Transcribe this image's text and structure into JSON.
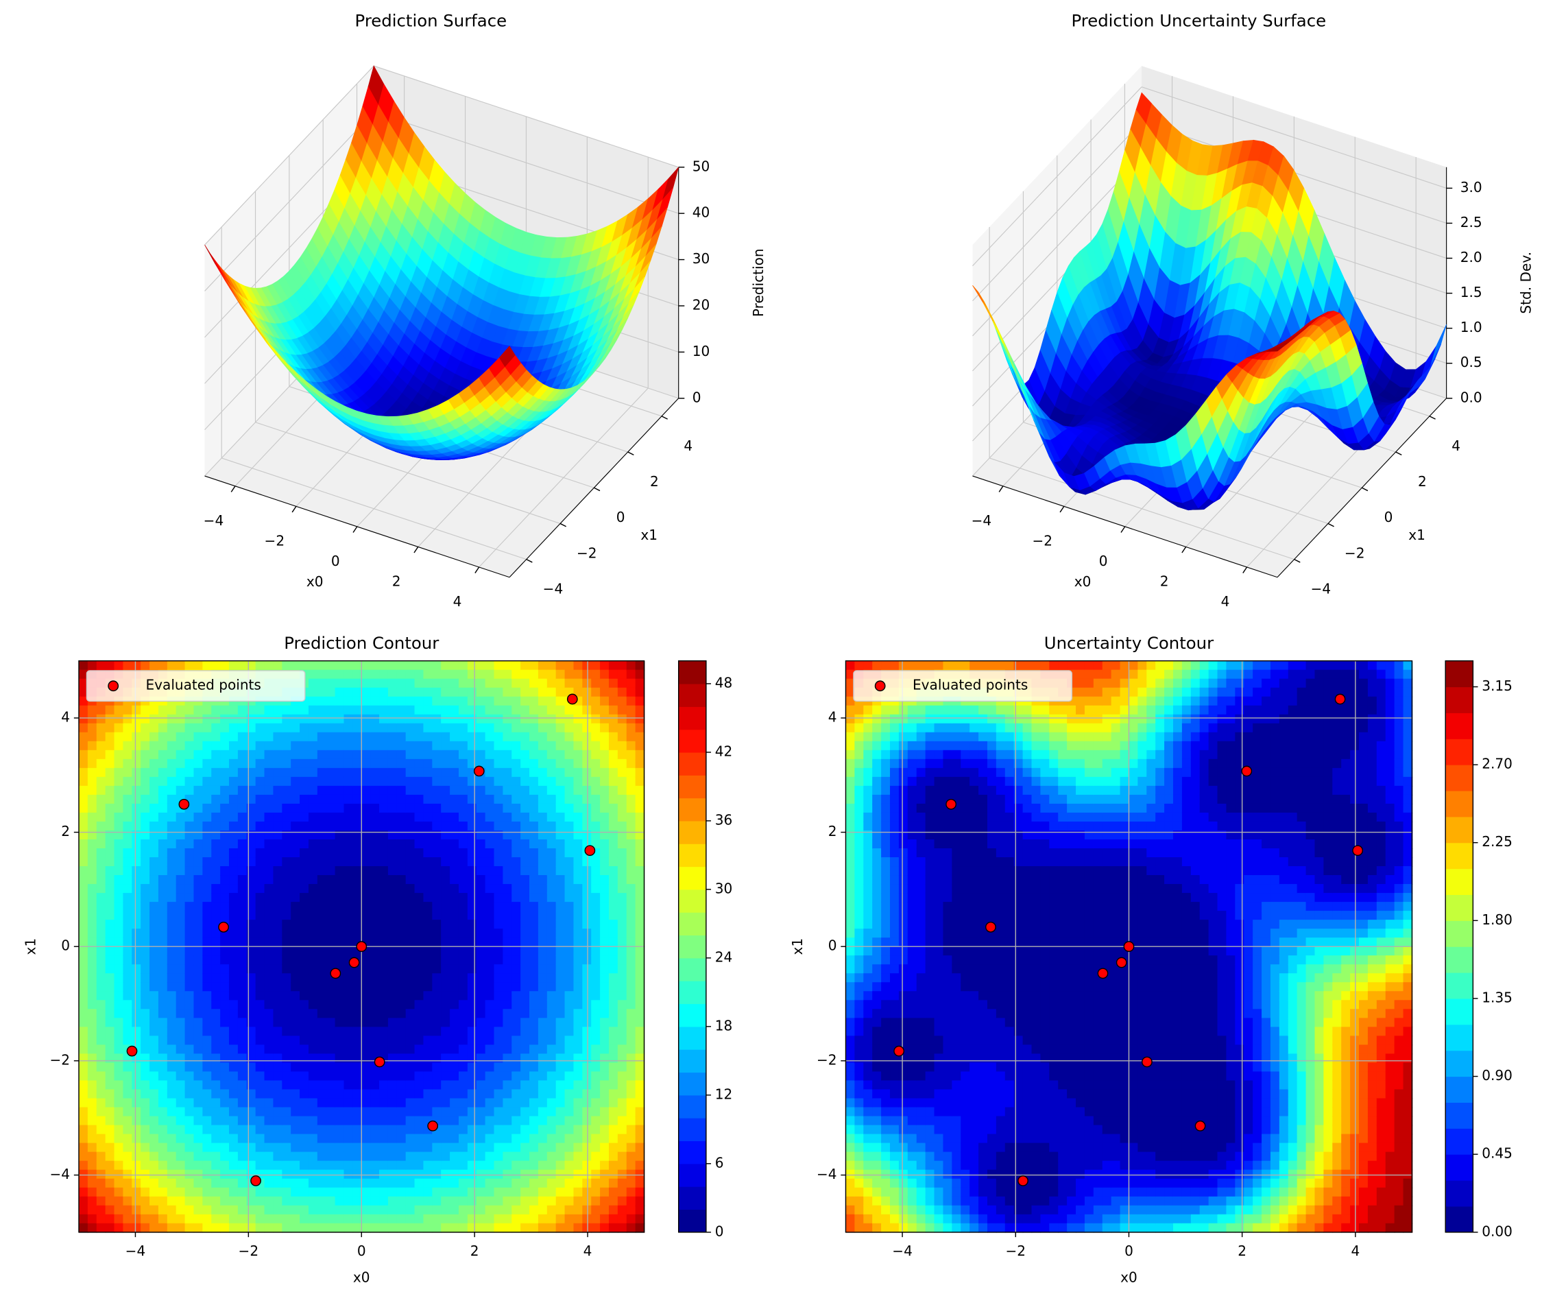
{
  "chart_data": [
    {
      "type": "surface3d",
      "title": "Prediction Surface",
      "xlabel": "x0",
      "ylabel": "x1",
      "zlabel": "Prediction",
      "xlim": [
        -5,
        5
      ],
      "ylim": [
        -5,
        5
      ],
      "zlim": [
        0,
        50
      ],
      "xticks": [
        {
          "value": -4,
          "label": "−4"
        },
        {
          "value": -2,
          "label": "−2"
        },
        0,
        2,
        4
      ],
      "yticks": [
        {
          "value": -4,
          "label": "−4"
        },
        {
          "value": -2,
          "label": "−2"
        },
        0,
        2,
        4
      ],
      "zticks": [
        0,
        10,
        20,
        30,
        40,
        50
      ]
    },
    {
      "type": "surface3d",
      "title": "Prediction Uncertainty Surface",
      "xlabel": "x0",
      "ylabel": "x1",
      "zlabel": "Std. Dev.",
      "xlim": [
        -5,
        5
      ],
      "ylim": [
        -5,
        5
      ],
      "zlim": [
        0,
        3.3
      ],
      "xticks": [
        {
          "value": -4,
          "label": "−4"
        },
        {
          "value": -2,
          "label": "−2"
        },
        0,
        2,
        4
      ],
      "yticks": [
        {
          "value": -4,
          "label": "−4"
        },
        {
          "value": -2,
          "label": "−2"
        },
        0,
        2,
        4
      ],
      "zticks": [
        {
          "value": 0,
          "label": "0.0"
        },
        {
          "value": 0.5,
          "label": "0.5"
        },
        {
          "value": 1,
          "label": "1.0"
        },
        {
          "value": 1.5,
          "label": "1.5"
        },
        {
          "value": 2,
          "label": "2.0"
        },
        {
          "value": 2.5,
          "label": "2.5"
        },
        {
          "value": 3,
          "label": "3.0"
        }
      ]
    },
    {
      "type": "contour",
      "title": "Prediction Contour",
      "xlabel": "x0",
      "ylabel": "x1",
      "xlim": [
        -5,
        5
      ],
      "ylim": [
        -5,
        5
      ],
      "grid": true,
      "legend": "upper left",
      "xticks": [
        {
          "value": -4,
          "label": "−4"
        },
        {
          "value": -2,
          "label": "−2"
        },
        0,
        2,
        4
      ],
      "yticks": [
        {
          "value": -4,
          "label": "−4"
        },
        {
          "value": -2,
          "label": "−2"
        },
        0,
        2,
        4
      ],
      "levels": [
        0,
        2,
        4,
        6,
        8,
        10,
        12,
        14,
        16,
        18,
        20,
        22,
        24,
        26,
        28,
        30,
        32,
        34,
        36,
        38,
        40,
        42,
        44,
        46,
        48,
        50
      ],
      "colorbar_ticks": [
        0,
        6,
        12,
        18,
        24,
        30,
        36,
        42,
        48
      ],
      "series": [
        {
          "name": "Evaluated points",
          "color": "#ff0000",
          "x": [
            3.73,
            2.08,
            -3.14,
            4.04,
            -2.44,
            0,
            -0.13,
            -0.46,
            0.32,
            -4.06,
            1.26,
            -1.87
          ],
          "values": [
            4.33,
            3.07,
            2.49,
            1.68,
            0.34,
            0,
            -0.28,
            -0.47,
            -2.02,
            -1.83,
            -3.14,
            -4.1
          ]
        }
      ]
    },
    {
      "type": "contour",
      "title": "Uncertainty Contour",
      "xlabel": "x0",
      "ylabel": "x1",
      "xlim": [
        -5,
        5
      ],
      "ylim": [
        -5,
        5
      ],
      "grid": true,
      "legend": "upper left",
      "xticks": [
        {
          "value": -4,
          "label": "−4"
        },
        {
          "value": -2,
          "label": "−2"
        },
        0,
        2,
        4
      ],
      "yticks": [
        {
          "value": -4,
          "label": "−4"
        },
        {
          "value": -2,
          "label": "−2"
        },
        0,
        2,
        4
      ],
      "levels": [
        0,
        0.15,
        0.3,
        0.45,
        0.6,
        0.75,
        0.9,
        1.05,
        1.2,
        1.35,
        1.5,
        1.65,
        1.8,
        1.95,
        2.1,
        2.25,
        2.4,
        2.55,
        2.7,
        2.85,
        3,
        3.15,
        3.3
      ],
      "colorbar_ticks": [
        {
          "value": 0,
          "label": "0.00"
        },
        {
          "value": 0.45,
          "label": "0.45"
        },
        {
          "value": 0.9,
          "label": "0.90"
        },
        {
          "value": 1.35,
          "label": "1.35"
        },
        {
          "value": 1.8,
          "label": "1.80"
        },
        {
          "value": 2.25,
          "label": "2.25"
        },
        {
          "value": 2.7,
          "label": "2.70"
        },
        {
          "value": 3.15,
          "label": "3.15"
        }
      ],
      "series": [
        {
          "name": "Evaluated points",
          "color": "#ff0000",
          "x": [
            3.73,
            2.08,
            -3.14,
            4.04,
            -2.44,
            0,
            -0.13,
            -0.46,
            0.32,
            -4.06,
            1.26,
            -1.87
          ],
          "values": [
            4.33,
            3.07,
            2.49,
            1.68,
            0.34,
            0,
            -0.28,
            -0.47,
            -2.02,
            -1.83,
            -3.14,
            -4.1
          ]
        }
      ]
    }
  ]
}
